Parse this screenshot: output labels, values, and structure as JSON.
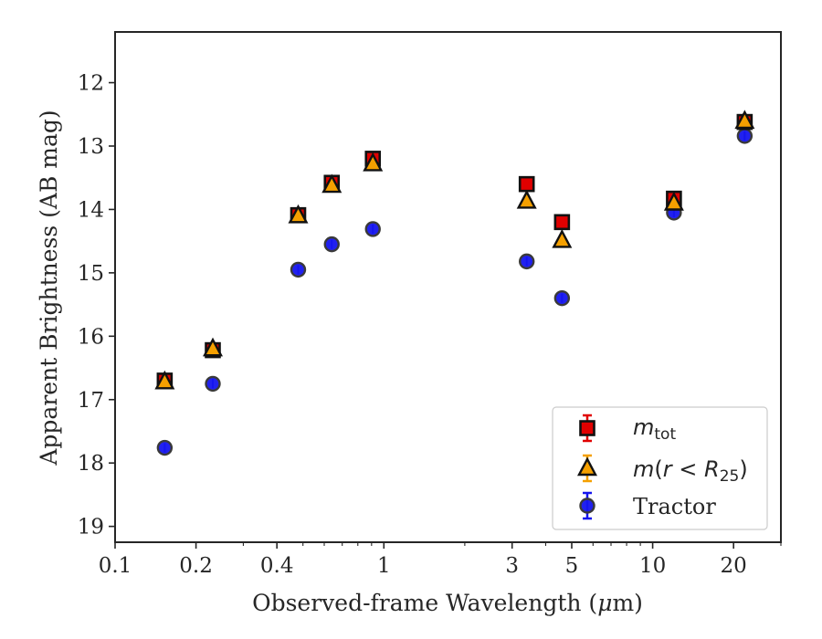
{
  "chart_data": {
    "type": "scatter",
    "xlabel_prefix": "Observed-frame Wavelength (",
    "xlabel_mu": "μ",
    "xlabel_suffix": "m)",
    "ylabel": "Apparent Brightness (AB mag)",
    "x_scale": "log",
    "xlim": [
      0.1,
      30
    ],
    "ylim": [
      19.25,
      11.2
    ],
    "y_inverted": true,
    "grid": false,
    "legend_position": "lower-right",
    "x_ticks": [
      {
        "value": 0.1,
        "label": "0.1"
      },
      {
        "value": 0.2,
        "label": "0.2"
      },
      {
        "value": 0.4,
        "label": "0.4"
      },
      {
        "value": 1,
        "label": "1"
      },
      {
        "value": 3,
        "label": "3"
      },
      {
        "value": 5,
        "label": "5"
      },
      {
        "value": 10,
        "label": "10"
      },
      {
        "value": 20,
        "label": "20"
      }
    ],
    "y_ticks": [
      {
        "value": 12,
        "label": "12"
      },
      {
        "value": 13,
        "label": "13"
      },
      {
        "value": 14,
        "label": "14"
      },
      {
        "value": 15,
        "label": "15"
      },
      {
        "value": 16,
        "label": "16"
      },
      {
        "value": 17,
        "label": "17"
      },
      {
        "value": 18,
        "label": "18"
      },
      {
        "value": 19,
        "label": "19"
      }
    ],
    "series": [
      {
        "key": "tot",
        "legend_main": "m",
        "legend_sub": "tot",
        "marker": "square",
        "color": "#e00000",
        "errorbar_color": "#e00000",
        "x": [
          0.153,
          0.231,
          0.48,
          0.64,
          0.91,
          3.4,
          4.6,
          12,
          22
        ],
        "y": [
          16.7,
          16.22,
          14.09,
          13.58,
          13.2,
          13.6,
          14.2,
          13.83,
          12.62
        ]
      },
      {
        "key": "r25",
        "legend_main": "m",
        "legend_paren_open": "(",
        "legend_r": "r",
        "legend_lt": " < ",
        "legend_R": "R",
        "legend_R_sub": "25",
        "legend_paren_close": ")",
        "marker": "triangle",
        "color": "#f5a000",
        "errorbar_color": "#f5a000",
        "x": [
          0.153,
          0.231,
          0.48,
          0.64,
          0.91,
          3.4,
          4.6,
          12,
          22
        ],
        "y": [
          16.72,
          16.2,
          14.1,
          13.62,
          13.28,
          13.87,
          14.49,
          13.9,
          12.61
        ]
      },
      {
        "key": "tractor",
        "legend_main": "Tractor",
        "marker": "circle",
        "color": "#1515ee",
        "errorbar_color": "#1515ee",
        "x": [
          0.153,
          0.231,
          0.48,
          0.64,
          0.91,
          3.4,
          4.6,
          12,
          22
        ],
        "y": [
          17.76,
          16.75,
          14.95,
          14.55,
          14.31,
          14.82,
          15.4,
          14.05,
          12.84
        ]
      }
    ]
  }
}
